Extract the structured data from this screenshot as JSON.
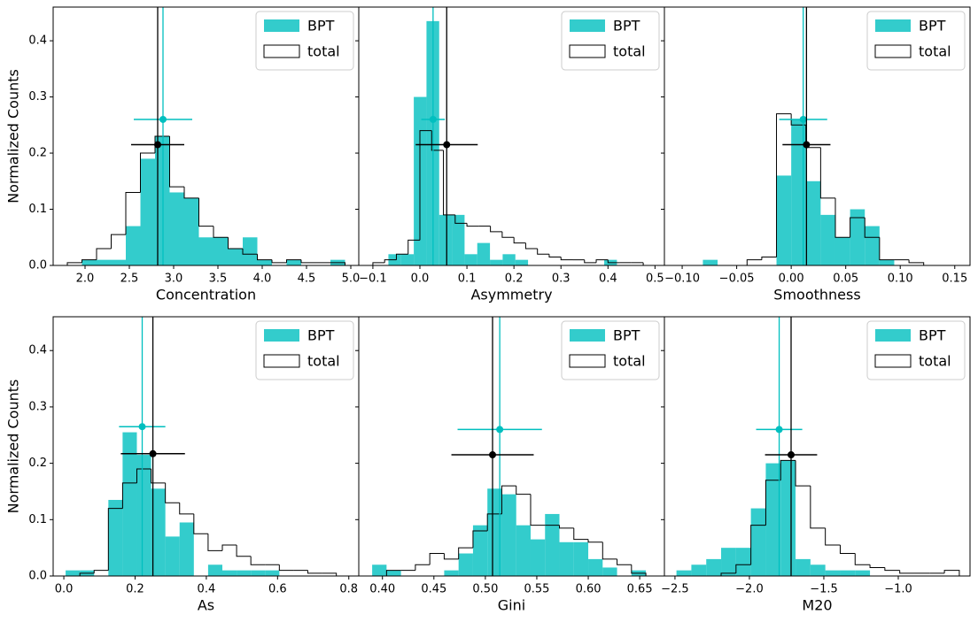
{
  "chart_data": [
    {
      "type": "histogram",
      "xlabel": "Concentration",
      "ylabel": "Normalized Counts",
      "legend": "upper right",
      "xlim": [
        1.64,
        5.09
      ],
      "ylim": [
        0,
        0.46
      ],
      "xticks": [
        {
          "value": 2,
          "label": "2.0"
        },
        2.5,
        {
          "value": 3,
          "label": "3.0"
        },
        3.5,
        {
          "value": 4,
          "label": "4.0"
        },
        4.5,
        {
          "value": 5,
          "label": "5.0"
        }
      ],
      "yticks": [
        {
          "value": 0,
          "label": "0.0"
        },
        0.1,
        0.2,
        0.3,
        0.4
      ],
      "series": [
        {
          "name": "BPT",
          "color": "#00bfbf",
          "style": "filled",
          "bins": [
            1.8,
            1.965,
            2.13,
            2.295,
            2.46,
            2.625,
            2.79,
            2.955,
            3.12,
            3.285,
            3.45,
            3.615,
            3.78,
            3.945,
            4.11,
            4.275,
            4.44,
            4.605,
            4.77,
            4.935
          ],
          "values": [
            0,
            0.01,
            0.01,
            0.01,
            0.07,
            0.19,
            0.23,
            0.13,
            0.12,
            0.05,
            0.05,
            0.03,
            0.05,
            0.01,
            0,
            0.01,
            0,
            0,
            0.01
          ],
          "median": 2.88,
          "median_y": 0.26,
          "error": 0.33
        },
        {
          "name": "total",
          "color": "#000000",
          "style": "step",
          "bins": [
            1.8,
            1.965,
            2.13,
            2.295,
            2.46,
            2.625,
            2.79,
            2.955,
            3.12,
            3.285,
            3.45,
            3.615,
            3.78,
            3.945,
            4.11,
            4.275,
            4.44,
            4.605,
            4.77,
            4.935
          ],
          "values": [
            0.005,
            0.01,
            0.03,
            0.055,
            0.13,
            0.2,
            0.23,
            0.14,
            0.12,
            0.07,
            0.05,
            0.03,
            0.02,
            0.01,
            0.005,
            0.01,
            0.005,
            0.005,
            0.005
          ],
          "median": 2.82,
          "median_y": 0.215,
          "error": 0.3
        }
      ]
    },
    {
      "type": "histogram",
      "xlabel": "Asymmetry",
      "legend": "upper right",
      "xlim": [
        -0.13,
        0.52
      ],
      "ylim": [
        0,
        0.46
      ],
      "xticks": [
        {
          "value": -0.1,
          "label": "−0.1"
        },
        {
          "value": 0,
          "label": "0.0"
        },
        0.1,
        0.2,
        0.3,
        0.4,
        0.5
      ],
      "yticks": [
        0,
        0.1,
        0.2,
        0.3,
        0.4
      ],
      "series": [
        {
          "name": "BPT",
          "color": "#00bfbf",
          "style": "filled",
          "bins": [
            -0.067,
            -0.04,
            -0.013,
            0.014,
            0.041,
            0.068,
            0.095,
            0.122,
            0.149,
            0.176,
            0.203,
            0.23,
            0.257,
            0.284,
            0.311,
            0.338,
            0.365,
            0.392,
            0.419
          ],
          "values": [
            0.02,
            0.02,
            0.3,
            0.435,
            0.09,
            0.09,
            0.02,
            0.04,
            0.01,
            0.02,
            0.01,
            0,
            0,
            0,
            0,
            0,
            0,
            0.01
          ],
          "median": 0.028,
          "median_y": 0.26,
          "error": 0.025
        },
        {
          "name": "total",
          "color": "#000000",
          "style": "step",
          "bins": [
            -0.1,
            -0.075,
            -0.05,
            -0.025,
            0,
            0.025,
            0.05,
            0.075,
            0.1,
            0.125,
            0.15,
            0.175,
            0.2,
            0.225,
            0.25,
            0.275,
            0.3,
            0.325,
            0.35,
            0.375,
            0.4,
            0.425,
            0.45,
            0.475,
            0.5
          ],
          "values": [
            0.005,
            0.01,
            0.02,
            0.045,
            0.24,
            0.205,
            0.09,
            0.075,
            0.07,
            0.07,
            0.06,
            0.05,
            0.04,
            0.03,
            0.02,
            0.015,
            0.01,
            0.01,
            0.005,
            0.01,
            0.005,
            0.005,
            0.005,
            0
          ],
          "median": 0.057,
          "median_y": 0.215,
          "error": 0.066
        }
      ]
    },
    {
      "type": "histogram",
      "xlabel": "Smoothness",
      "legend": "upper right",
      "xlim": [
        -0.1163,
        0.164
      ],
      "ylim": [
        0,
        0.46
      ],
      "xticks": [
        {
          "value": -0.1,
          "label": "−0.10"
        },
        {
          "value": -0.05,
          "label": "−0.05"
        },
        {
          "value": 0,
          "label": "0.00"
        },
        0.05,
        {
          "value": 0.1,
          "label": "0.10"
        },
        0.15
      ],
      "yticks": [
        0,
        0.1,
        0.2,
        0.3,
        0.4
      ],
      "series": [
        {
          "name": "BPT",
          "color": "#00bfbf",
          "style": "filled",
          "bins": [
            -0.081,
            -0.0675,
            -0.054,
            -0.0405,
            -0.027,
            -0.0135,
            0,
            0.0135,
            0.027,
            0.0405,
            0.054,
            0.0675,
            0.081,
            0.0945
          ],
          "values": [
            0.01,
            0,
            0,
            0,
            0,
            0.16,
            0.26,
            0.15,
            0.09,
            0.05,
            0.1,
            0.07,
            0.01
          ],
          "median": 0.011,
          "median_y": 0.26,
          "error": 0.022
        },
        {
          "name": "total",
          "color": "#000000",
          "style": "step",
          "bins": [
            -0.0405,
            -0.027,
            -0.0135,
            0,
            0.0135,
            0.027,
            0.0405,
            0.054,
            0.0675,
            0.081,
            0.0945,
            0.108,
            0.1215
          ],
          "values": [
            0.01,
            0.015,
            0.27,
            0.25,
            0.21,
            0.12,
            0.05,
            0.085,
            0.05,
            0.01,
            0.01,
            0.005
          ],
          "median": 0.014,
          "median_y": 0.215,
          "error": 0.022
        }
      ]
    },
    {
      "type": "histogram",
      "xlabel": "As",
      "ylabel": "Normalized Counts",
      "legend": "upper right",
      "xlim": [
        -0.03,
        0.828
      ],
      "ylim": [
        0,
        0.46
      ],
      "xticks": [
        {
          "value": 0,
          "label": "0.0"
        },
        0.2,
        0.4,
        0.6,
        0.8
      ],
      "yticks": [
        {
          "value": 0,
          "label": "0.0"
        },
        0.1,
        0.2,
        0.3,
        0.4
      ],
      "series": [
        {
          "name": "BPT",
          "color": "#00bfbf",
          "style": "filled",
          "bins": [
            0.005,
            0.045,
            0.085,
            0.125,
            0.165,
            0.205,
            0.245,
            0.285,
            0.325,
            0.365,
            0.405,
            0.445,
            0.485,
            0.525,
            0.565,
            0.605
          ],
          "values": [
            0.01,
            0.01,
            0,
            0.135,
            0.255,
            0.215,
            0.155,
            0.07,
            0.095,
            0,
            0.02,
            0.01,
            0.01,
            0.01,
            0.01
          ],
          "median": 0.22,
          "median_y": 0.265,
          "error": 0.065
        },
        {
          "name": "total",
          "color": "#000000",
          "style": "step",
          "bins": [
            0.045,
            0.085,
            0.125,
            0.165,
            0.205,
            0.245,
            0.285,
            0.325,
            0.365,
            0.405,
            0.445,
            0.485,
            0.525,
            0.565,
            0.605,
            0.645,
            0.685,
            0.725,
            0.765
          ],
          "values": [
            0.005,
            0.01,
            0.12,
            0.165,
            0.19,
            0.165,
            0.13,
            0.11,
            0.075,
            0.045,
            0.055,
            0.035,
            0.02,
            0.02,
            0.01,
            0.01,
            0.005,
            0.005
          ],
          "median": 0.25,
          "median_y": 0.217,
          "error": 0.09
        }
      ]
    },
    {
      "type": "histogram",
      "xlabel": "Gini",
      "legend": "upper right",
      "xlim": [
        0.377,
        0.674
      ],
      "ylim": [
        0,
        0.46
      ],
      "xticks": [
        {
          "value": 0.4,
          "label": "0.40"
        },
        0.45,
        {
          "value": 0.5,
          "label": "0.50"
        },
        0.55,
        {
          "value": 0.6,
          "label": "0.60"
        },
        0.65
      ],
      "yticks": [
        0,
        0.1,
        0.2,
        0.3,
        0.4
      ],
      "series": [
        {
          "name": "BPT",
          "color": "#00bfbf",
          "style": "filled",
          "bins": [
            0.39,
            0.404,
            0.418,
            0.432,
            0.446,
            0.46,
            0.474,
            0.488,
            0.502,
            0.516,
            0.53,
            0.544,
            0.558,
            0.572,
            0.586,
            0.6,
            0.614,
            0.628,
            0.642,
            0.656
          ],
          "values": [
            0.02,
            0.01,
            0,
            0,
            0,
            0.01,
            0.04,
            0.09,
            0.155,
            0.145,
            0.09,
            0.065,
            0.11,
            0.06,
            0.06,
            0.03,
            0.015,
            0,
            0.01
          ],
          "median": 0.514,
          "median_y": 0.26,
          "error": 0.041
        },
        {
          "name": "total",
          "color": "#000000",
          "style": "step",
          "bins": [
            0.404,
            0.418,
            0.432,
            0.446,
            0.46,
            0.474,
            0.488,
            0.502,
            0.516,
            0.53,
            0.544,
            0.558,
            0.572,
            0.586,
            0.6,
            0.614,
            0.628,
            0.642,
            0.656
          ],
          "values": [
            0.01,
            0.01,
            0.02,
            0.04,
            0.03,
            0.05,
            0.08,
            0.11,
            0.16,
            0.145,
            0.09,
            0.09,
            0.085,
            0.065,
            0.06,
            0.03,
            0.02,
            0.005
          ],
          "median": 0.507,
          "median_y": 0.215,
          "error": 0.04
        }
      ]
    },
    {
      "type": "histogram",
      "xlabel": "M20",
      "legend": "upper right",
      "xlim": [
        -2.571,
        -0.518
      ],
      "ylim": [
        0,
        0.46
      ],
      "xticks": [
        {
          "value": -2.5,
          "label": "−2.5"
        },
        {
          "value": -2,
          "label": "−2.0"
        },
        {
          "value": -1.5,
          "label": "−1.5"
        },
        {
          "value": -1,
          "label": "−1.0"
        }
      ],
      "yticks": [
        0,
        0.1,
        0.2,
        0.3,
        0.4
      ],
      "series": [
        {
          "name": "BPT",
          "color": "#00bfbf",
          "style": "filled",
          "bins": [
            -2.49,
            -2.39,
            -2.29,
            -2.19,
            -2.09,
            -1.99,
            -1.89,
            -1.79,
            -1.69,
            -1.59,
            -1.49,
            -1.39,
            -1.29,
            -1.19
          ],
          "values": [
            0.01,
            0.02,
            0.03,
            0.05,
            0.05,
            0.12,
            0.2,
            0.205,
            0.03,
            0.02,
            0.01,
            0.01,
            0.01
          ],
          "median": -1.8,
          "median_y": 0.26,
          "error": 0.155
        },
        {
          "name": "total",
          "color": "#000000",
          "style": "step",
          "bins": [
            -2.19,
            -2.09,
            -1.99,
            -1.89,
            -1.79,
            -1.69,
            -1.59,
            -1.49,
            -1.39,
            -1.29,
            -1.19,
            -1.09,
            -0.99,
            -0.89,
            -0.79,
            -0.69,
            -0.59
          ],
          "values": [
            0.005,
            0.02,
            0.09,
            0.17,
            0.205,
            0.16,
            0.085,
            0.055,
            0.04,
            0.02,
            0.015,
            0.01,
            0.005,
            0.005,
            0.005,
            0.01
          ],
          "median": -1.72,
          "median_y": 0.215,
          "error": 0.175
        }
      ]
    }
  ]
}
